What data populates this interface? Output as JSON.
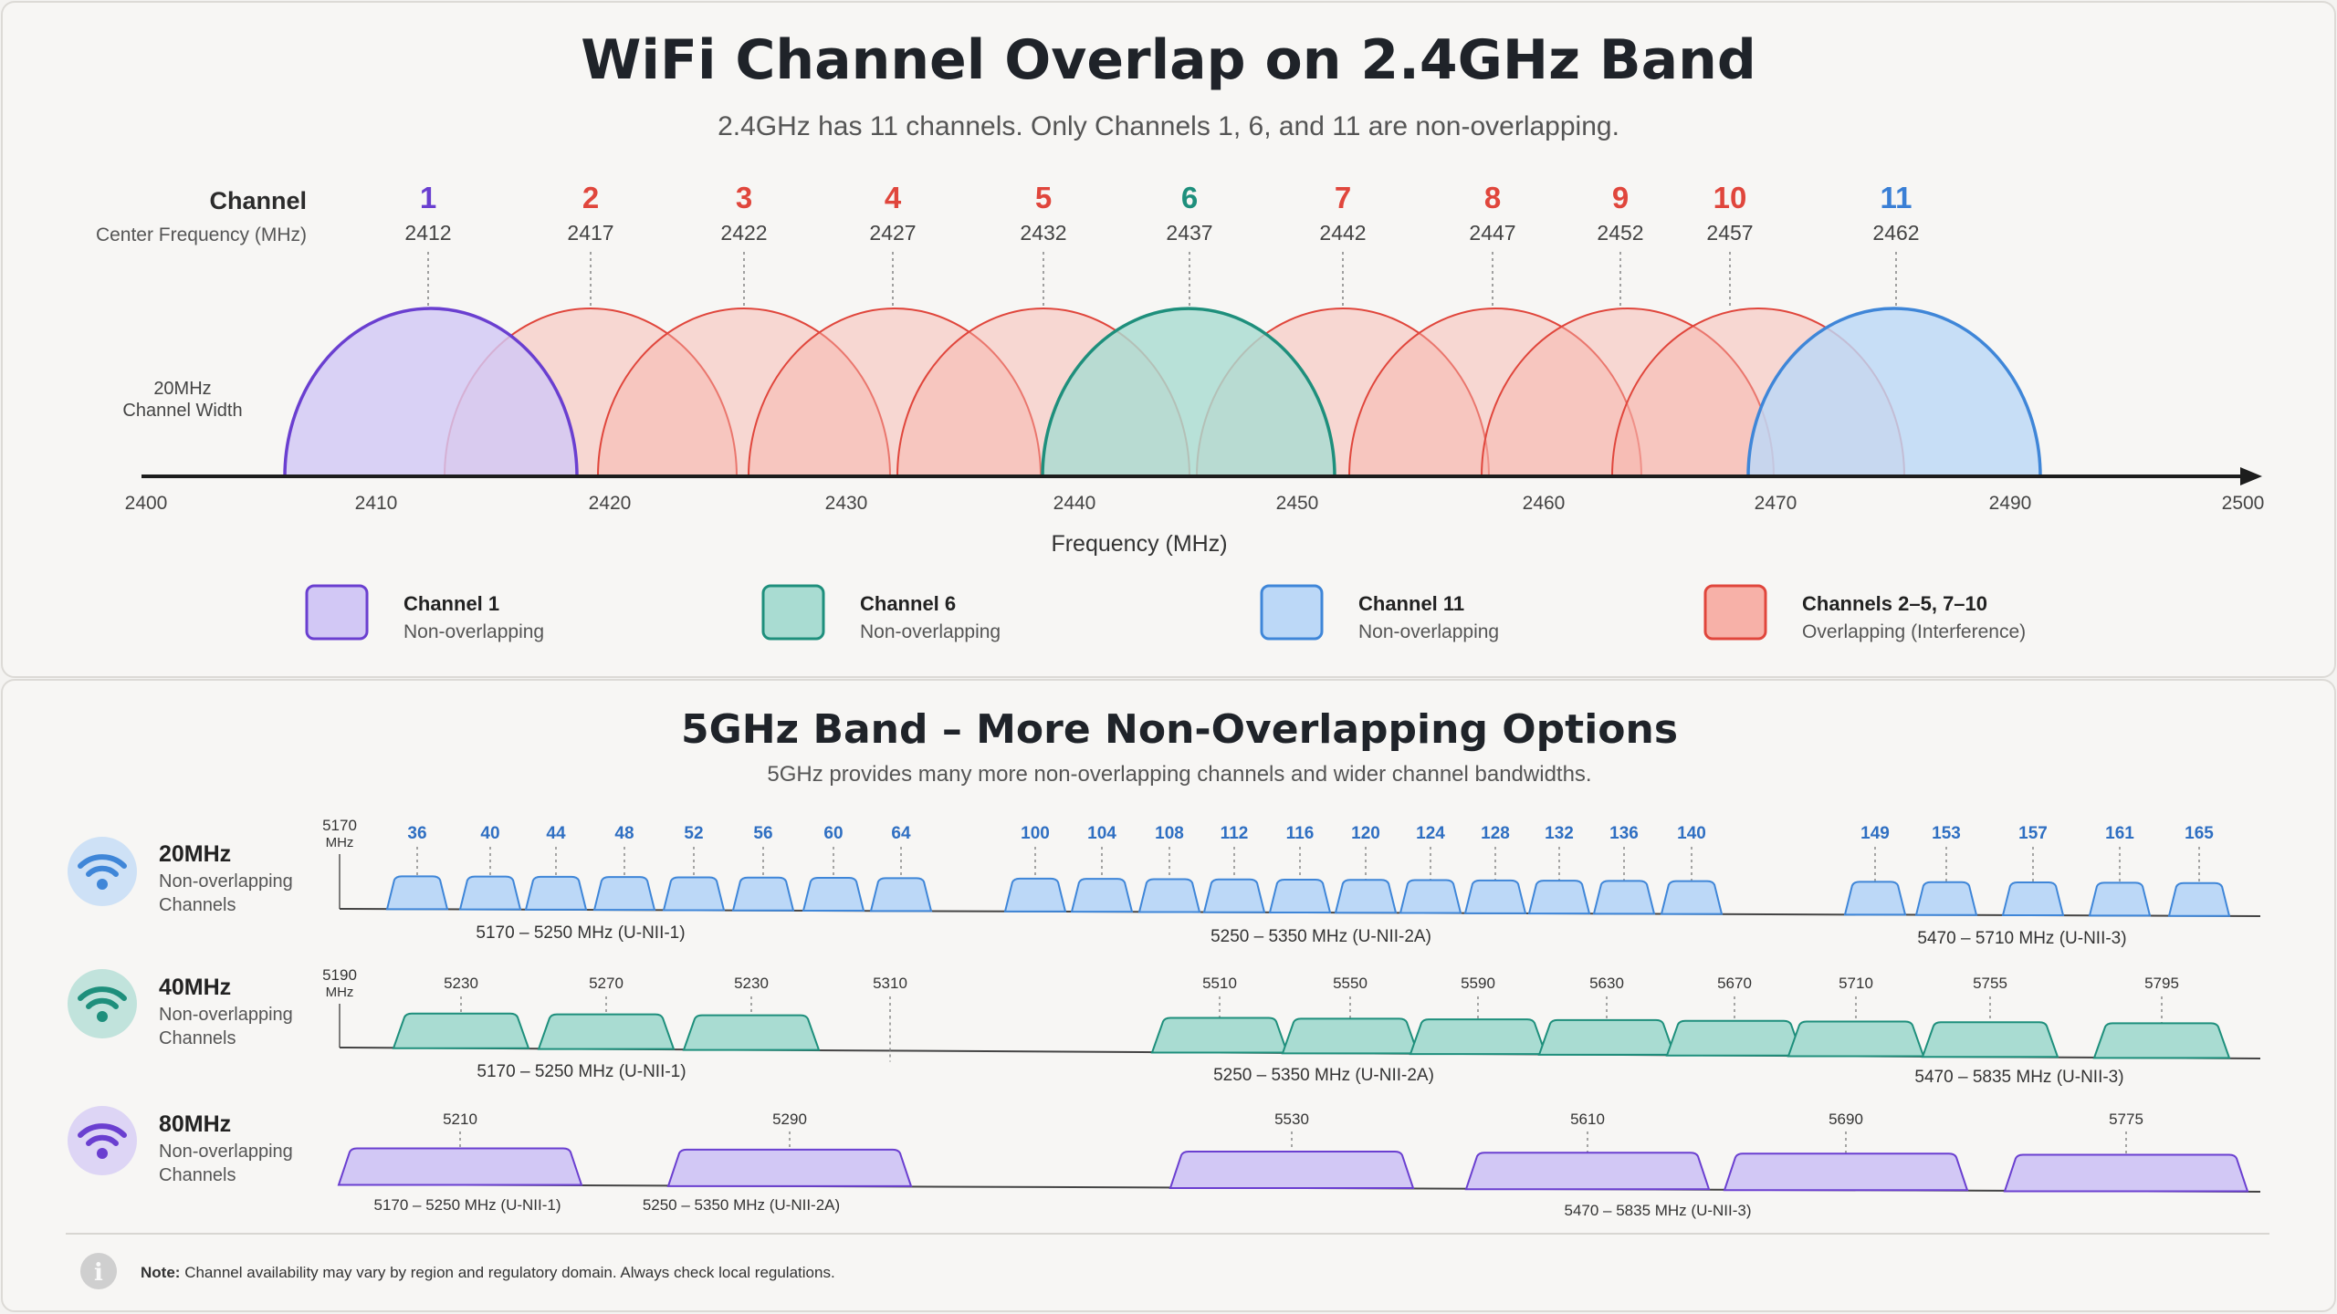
{
  "band24": {
    "title": "WiFi Channel Overlap on 2.4GHz Band",
    "subtitle": "2.4GHz has 11 channels. Only Channels 1, 6, and 11 are non-overlapping.",
    "channel_row_label": "Channel",
    "freq_row_label": "Center Frequency (MHz)",
    "width_label_1": "20MHz",
    "width_label_2": "Channel Width",
    "axis_label": "Frequency (MHz)",
    "axis_ticks": [
      "2400",
      "2410",
      "2420",
      "2430",
      "2440",
      "2450",
      "2460",
      "2470",
      "2490",
      "2500"
    ],
    "channels": [
      {
        "num": "1",
        "freq": "2412",
        "group": "ch1"
      },
      {
        "num": "2",
        "freq": "2417",
        "group": "overlap"
      },
      {
        "num": "3",
        "freq": "2422",
        "group": "overlap"
      },
      {
        "num": "4",
        "freq": "2427",
        "group": "overlap"
      },
      {
        "num": "5",
        "freq": "2432",
        "group": "overlap"
      },
      {
        "num": "6",
        "freq": "2437",
        "group": "ch6"
      },
      {
        "num": "7",
        "freq": "2442",
        "group": "overlap"
      },
      {
        "num": "8",
        "freq": "2447",
        "group": "overlap"
      },
      {
        "num": "9",
        "freq": "2452",
        "group": "overlap"
      },
      {
        "num": "10",
        "freq": "2457",
        "group": "overlap"
      },
      {
        "num": "11",
        "freq": "2462",
        "group": "ch11"
      }
    ],
    "legend": [
      {
        "title": "Channel 1",
        "desc": "Non-overlapping",
        "group": "ch1"
      },
      {
        "title": "Channel 6",
        "desc": "Non-overlapping",
        "group": "ch6"
      },
      {
        "title": "Channel 11",
        "desc": "Non-overlapping",
        "group": "ch11"
      },
      {
        "title": "Channels 2–5, 7–10",
        "desc": "Overlapping (Interference)",
        "group": "overlap"
      }
    ]
  },
  "band5": {
    "title": "5GHz Band – More Non-Overlapping Options",
    "subtitle": "5GHz provides many more non-overlapping channels and wider channel bandwidths.",
    "rows": [
      {
        "width": "20MHz",
        "desc1": "Non-overlapping",
        "desc2": "Channels",
        "color_group": "ch11",
        "start_label": "5170",
        "start_unit": "MHz",
        "channels": [
          "36",
          "40",
          "44",
          "48",
          "52",
          "56",
          "60",
          "64",
          "100",
          "104",
          "108",
          "112",
          "116",
          "120",
          "124",
          "128",
          "132",
          "136",
          "140",
          "149",
          "153",
          "157",
          "161",
          "165"
        ],
        "ranges": [
          "5170 – 5250 MHz (U-NII-1)",
          "5250 – 5350 MHz (U-NII-2A)",
          "5470 – 5710 MHz (U-NII-3)"
        ]
      },
      {
        "width": "40MHz",
        "desc1": "Non-overlapping",
        "desc2": "Channels",
        "color_group": "ch6",
        "start_label": "5190",
        "start_unit": "MHz",
        "channels": [
          "5230",
          "5270",
          "5230",
          "5310",
          "5510",
          "5550",
          "5590",
          "5630",
          "5670",
          "5710",
          "5755",
          "5795"
        ],
        "ranges": [
          "5170 – 5250 MHz (U-NII-1)",
          "5250 – 5350 MHz (U-NII-2A)",
          "5470 – 5835 MHz (U-NII-3)"
        ]
      },
      {
        "width": "80MHz",
        "desc1": "Non-overlapping",
        "desc2": "Channels",
        "color_group": "ch1",
        "channels": [
          "5210",
          "5290",
          "5530",
          "5610",
          "5690",
          "5775"
        ],
        "ranges": [
          "5170 – 5250 MHz (U-NII-1)",
          "5250 – 5350 MHz (U-NII-2A)",
          "5470 – 5835 MHz (U-NII-3)"
        ]
      }
    ]
  },
  "note": {
    "label": "Note:",
    "text": "Channel availability may vary by region and regulatory domain. Always check local regulations."
  },
  "colors": {
    "ch1": {
      "fill": "#d2c8f5",
      "stroke": "#6a3fd0",
      "text": "#6a3fd0"
    },
    "ch6": {
      "fill": "#a9dcd2",
      "stroke": "#1e8f7c",
      "text": "#1e8f7c"
    },
    "ch11": {
      "fill": "#bcd8f7",
      "stroke": "#3f86d8",
      "text": "#3a7fd5"
    },
    "overlap": {
      "fill": "#f7b1a8",
      "stroke": "#e0463c",
      "text": "#e0463c"
    }
  }
}
